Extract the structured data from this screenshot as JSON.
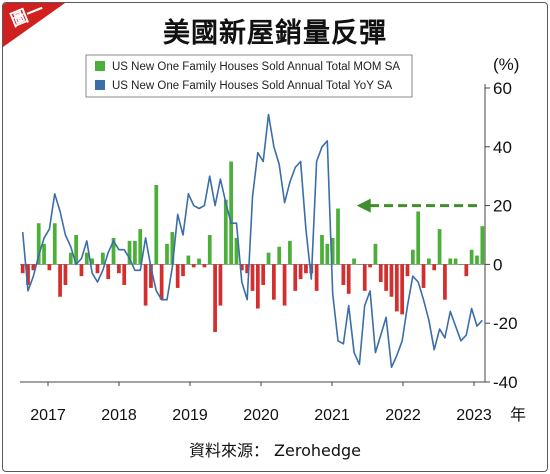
{
  "header": {
    "badge": "圖一",
    "title": "美國新屋銷量反彈",
    "source": "資料來源： Zerohedge"
  },
  "chart_data": {
    "type": "bar",
    "ylim": [
      -40,
      60
    ],
    "yticks": [
      "60",
      "40",
      "20",
      "0",
      "-20",
      "-40"
    ],
    "yunit": "(%)",
    "xunit": "年",
    "xticks": [
      "2017",
      "2018",
      "2019",
      "2020",
      "2021",
      "2022",
      "2023"
    ],
    "legend": {
      "position": "top-center"
    },
    "colors": {
      "mom_pos": "#4caf3a",
      "mom_neg": "#d32f2f",
      "yoy": "#3b6ea8",
      "arrow": "#3f8f2f"
    },
    "series": [
      {
        "name": "US New One Family Houses Sold Annual Total MOM SA",
        "kind": "bar",
        "values": [
          -3,
          -7,
          -2,
          14,
          7,
          -2,
          14,
          -11,
          -7,
          4,
          10,
          -4,
          4,
          2,
          -3,
          4,
          -5,
          9,
          -3,
          -7,
          8,
          8,
          12,
          -14,
          -8,
          27,
          -12,
          7,
          11,
          -8,
          -4,
          3,
          -1,
          2,
          -1,
          10,
          -23,
          -14,
          22,
          35,
          9,
          -2,
          -3,
          -9,
          -15,
          -7,
          4,
          -12,
          6,
          -14,
          8,
          -9,
          -5,
          -3,
          -3,
          -9,
          10,
          7,
          9,
          19,
          -7,
          -10,
          2,
          0,
          -9,
          -1,
          7,
          -6,
          -9,
          -11,
          -16,
          -17,
          -4,
          5,
          18,
          -8,
          2,
          -2,
          12,
          -12,
          2,
          2,
          0,
          -4,
          5,
          3,
          13
        ]
      },
      {
        "name": "US New One Family Houses Sold Annual Total YoY SA",
        "kind": "line",
        "values": [
          11,
          -9,
          -4,
          3,
          9,
          12,
          24,
          18,
          10,
          6,
          0,
          2,
          8,
          -3,
          -6,
          -2,
          4,
          8,
          5,
          5,
          2,
          -2,
          -2,
          9,
          -1,
          -9,
          -12,
          -12,
          -1,
          17,
          10,
          24,
          20,
          19,
          20,
          30,
          20,
          29,
          21,
          14,
          14,
          -6,
          -12,
          23,
          38,
          35,
          51,
          40,
          34,
          21,
          28,
          33,
          35,
          12,
          -5,
          35,
          40,
          42,
          -10,
          -26,
          -27,
          -14,
          -30,
          -34,
          -14,
          -9,
          -30,
          -24,
          -18,
          -35,
          -31,
          -26,
          -14,
          -4,
          -6,
          -12,
          -19,
          -29,
          -22,
          -25,
          -16,
          -21,
          -26,
          -24,
          -15,
          -21,
          -19
        ]
      }
    ],
    "annotations": [
      {
        "type": "arrow",
        "direction": "left",
        "from_y": 20,
        "to_y": 20
      }
    ]
  }
}
